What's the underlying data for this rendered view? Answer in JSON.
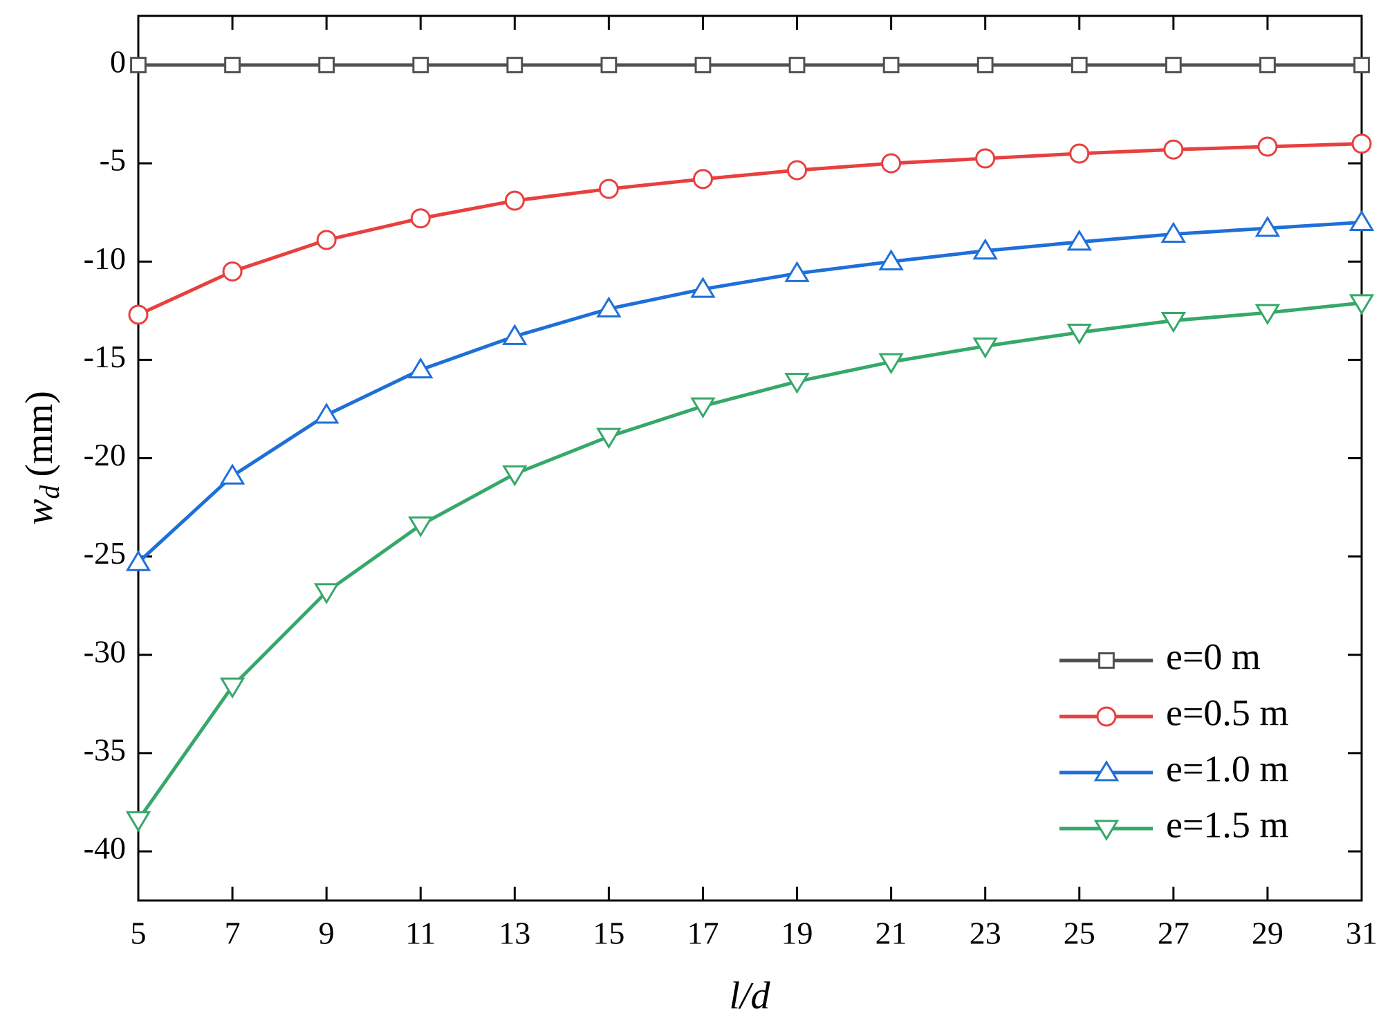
{
  "chart_data": {
    "type": "line",
    "xlabel": "l/d",
    "ylabel": {
      "text": "w",
      "subscript": "d",
      "unit": "(mm)"
    },
    "x": [
      5,
      7,
      9,
      11,
      13,
      15,
      17,
      19,
      21,
      23,
      25,
      27,
      29,
      31
    ],
    "series": [
      {
        "name": "e=0 m",
        "color": "#505050",
        "marker": "square",
        "values": [
          0,
          0,
          0,
          0,
          0,
          0,
          0,
          0,
          0,
          0,
          0,
          0,
          0,
          0
        ]
      },
      {
        "name": "e=0.5 m",
        "color": "#e8403e",
        "marker": "circle",
        "values": [
          -12.7,
          -10.5,
          -8.9,
          -7.8,
          -6.9,
          -6.3,
          -5.8,
          -5.35,
          -5.0,
          -4.75,
          -4.5,
          -4.3,
          -4.15,
          -4.0
        ]
      },
      {
        "name": "e=1.0 m",
        "color": "#1f6fd8",
        "marker": "triangle-up",
        "values": [
          -25.3,
          -20.9,
          -17.8,
          -15.5,
          -13.8,
          -12.4,
          -11.4,
          -10.6,
          -10.0,
          -9.45,
          -9.0,
          -8.6,
          -8.3,
          -8.0
        ]
      },
      {
        "name": "e=1.5 m",
        "color": "#36a86a",
        "marker": "triangle-down",
        "values": [
          -38.4,
          -31.6,
          -26.8,
          -23.4,
          -20.8,
          -18.9,
          -17.35,
          -16.1,
          -15.1,
          -14.3,
          -13.6,
          -13.0,
          -12.6,
          -12.1
        ]
      }
    ],
    "xlim": [
      5,
      31
    ],
    "xticks": [
      5,
      7,
      9,
      11,
      13,
      15,
      17,
      19,
      21,
      23,
      25,
      27,
      29,
      31
    ],
    "ylim": [
      -42.5,
      2.5
    ],
    "yticks": [
      0,
      -5,
      -10,
      -15,
      -20,
      -25,
      -30,
      -35,
      -40
    ],
    "legend": "lower right"
  }
}
